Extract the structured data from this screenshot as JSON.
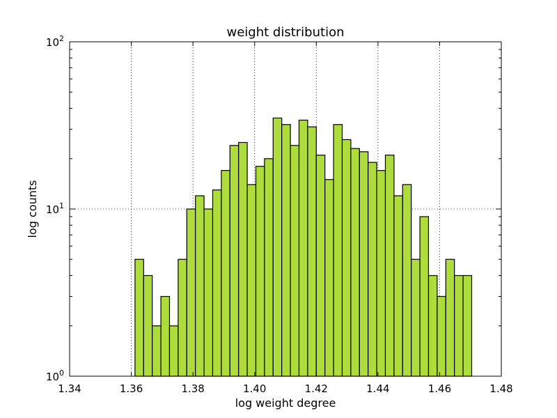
{
  "chart_data": {
    "type": "bar",
    "title": "weight distribution",
    "xlabel": "log weight degree",
    "ylabel": "log counts",
    "xlim": [
      1.34,
      1.48
    ],
    "ylim": [
      1,
      100
    ],
    "y_scale": "log",
    "grid": true,
    "bar_color": "#addc3c",
    "bar_edge_color": "#000000",
    "x_ticks": [
      1.34,
      1.36,
      1.38,
      1.4,
      1.42,
      1.44,
      1.46,
      1.48
    ],
    "x_tick_labels": [
      "1.34",
      "1.36",
      "1.38",
      "1.40",
      "1.42",
      "1.44",
      "1.46",
      "1.48"
    ],
    "y_ticks": [
      {
        "value": 1,
        "base": "10",
        "exp": "0"
      },
      {
        "value": 10,
        "base": "10",
        "exp": "1"
      },
      {
        "value": 100,
        "base": "10",
        "exp": "2"
      }
    ],
    "bin_edges_start": 1.3612,
    "bin_width": 0.0028,
    "values": [
      5,
      4,
      2,
      3,
      2,
      5,
      10,
      12,
      10,
      13,
      17,
      24,
      25,
      14,
      18,
      20,
      35,
      32,
      24,
      34,
      31,
      21,
      15,
      32,
      26,
      23,
      22,
      19,
      17,
      21,
      12,
      14,
      5,
      9,
      4,
      3,
      5,
      4,
      4
    ]
  }
}
